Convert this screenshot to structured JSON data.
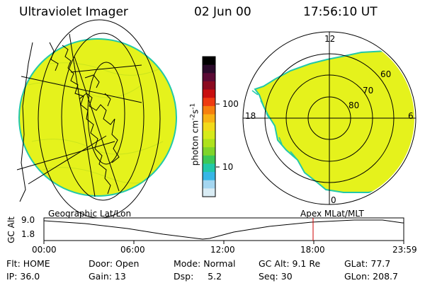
{
  "header": {
    "title": "Ultraviolet Imager",
    "date": "02 Jun 00",
    "time": "17:56:10 UT"
  },
  "colorbar": {
    "label": "photon cm",
    "label_sup1": "-2",
    "label_mid": "s",
    "label_sup2": "-1",
    "ticks": [
      "100",
      "10"
    ],
    "colors": [
      "#000000",
      "#2a0a2a",
      "#5b0a35",
      "#8b0a20",
      "#c80f0f",
      "#ee3a10",
      "#f6800e",
      "#f8b214",
      "#f2da1a",
      "#d6ea1a",
      "#aee21c",
      "#7fd42a",
      "#3cc857",
      "#22c8a8",
      "#37b6e6",
      "#a4d6f0",
      "#d9ecf4"
    ]
  },
  "geo_map": {
    "caption": "Geographic Lat/Lon",
    "fill": "#e5f21c",
    "edge": "#22c8a8"
  },
  "polar": {
    "caption": "Apex MLat/MLT",
    "mlt_labels": {
      "top": "12",
      "left": "18",
      "right": "6",
      "bottom": "0"
    },
    "lat_labels": [
      "60",
      "70",
      "80"
    ],
    "fill": "#e5f21c"
  },
  "timeline": {
    "ylabel": "GC Alt",
    "ymax": "9.0",
    "ymin": "1.8",
    "ticks": [
      "00:00",
      "06:00",
      "12:00",
      "18:00",
      "23:59"
    ],
    "marker_color": "#cc0000"
  },
  "info": {
    "row1": {
      "flt": "Flt: HOME",
      "door": "Door: Open",
      "mode": "Mode: Normal",
      "gcalt": "GC Alt: 9.1 Re",
      "glat": "GLat:  77.7"
    },
    "row2": {
      "ip": "IP: 36.0",
      "gain": "Gain: 13",
      "dsp": "Dsp:     5.2",
      "seq": "Seq: 30",
      "glon": "GLon: 208.7"
    }
  }
}
